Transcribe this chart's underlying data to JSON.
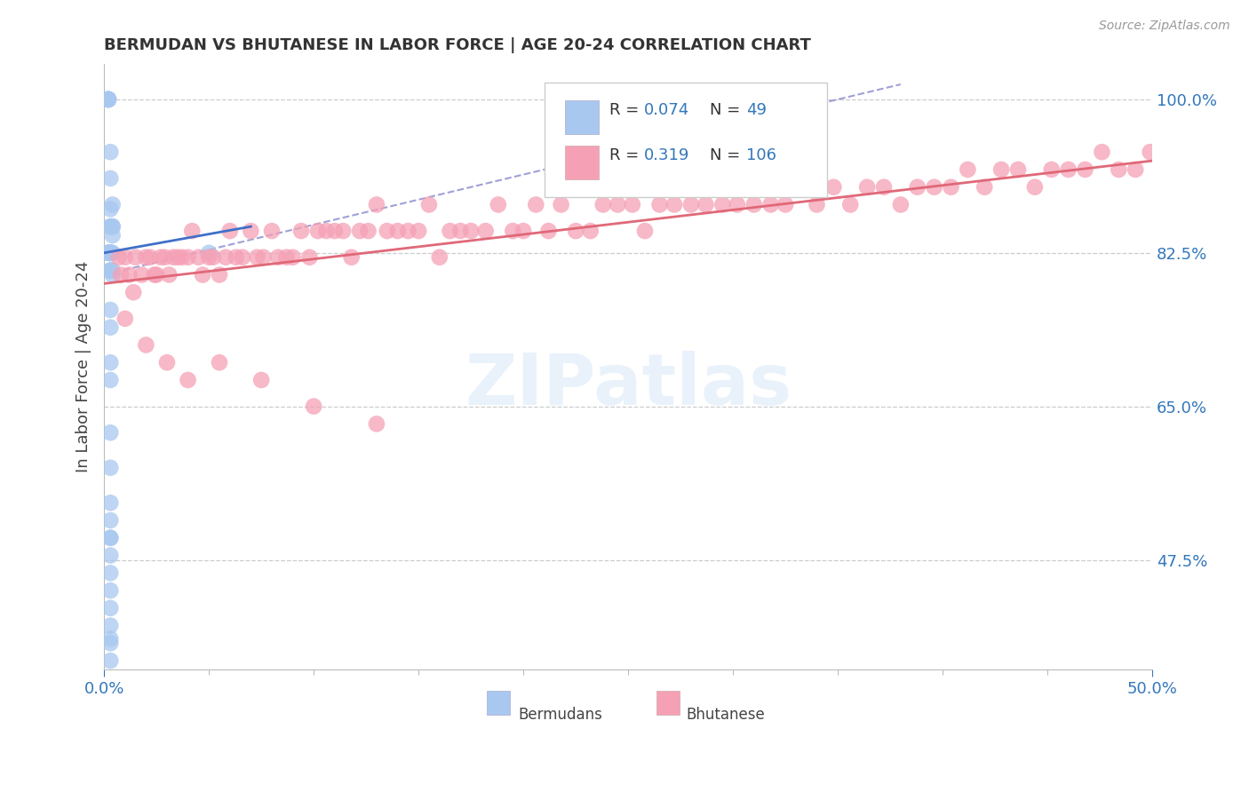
{
  "title": "BERMUDAN VS BHUTANESE IN LABOR FORCE | AGE 20-24 CORRELATION CHART",
  "source": "Source: ZipAtlas.com",
  "ylabel": "In Labor Force | Age 20-24",
  "watermark": "ZIPatlas",
  "legend_r1": "R = 0.074",
  "legend_n1": "N =  49",
  "legend_r2": "R = 0.319",
  "legend_n2": "N = 106",
  "bermudan_color": "#a8c8f0",
  "bhutanese_color": "#f5a0b5",
  "bermudan_line_color": "#4070c8",
  "bhutanese_line_color": "#e06878",
  "dashed_line_color": "#9090d0",
  "xlim": [
    0.0,
    0.5
  ],
  "ylim": [
    0.35,
    1.04
  ],
  "yticks": [
    0.475,
    0.65,
    0.825,
    1.0
  ],
  "ytick_labels": [
    "47.5%",
    "65.0%",
    "82.5%",
    "100.0%"
  ],
  "xtick_vals": [
    0.0,
    0.5
  ],
  "xtick_labels": [
    "0.0%",
    "50.0%"
  ],
  "berm_x": [
    0.002,
    0.002,
    0.002,
    0.002,
    0.002,
    0.003,
    0.003,
    0.004,
    0.003,
    0.004,
    0.003,
    0.003,
    0.004,
    0.004,
    0.002,
    0.002,
    0.002,
    0.003,
    0.003,
    0.003,
    0.003,
    0.003,
    0.003,
    0.003,
    0.004,
    0.003,
    0.003,
    0.004,
    0.004,
    0.003,
    0.003,
    0.003,
    0.003,
    0.003,
    0.003,
    0.003,
    0.003,
    0.003,
    0.003,
    0.003,
    0.003,
    0.003,
    0.003,
    0.003,
    0.003,
    0.003,
    0.003,
    0.05,
    0.003
  ],
  "berm_y": [
    1.0,
    1.0,
    1.0,
    1.0,
    1.0,
    0.94,
    0.91,
    0.88,
    0.875,
    0.855,
    0.855,
    0.855,
    0.855,
    0.845,
    0.825,
    0.825,
    0.825,
    0.825,
    0.825,
    0.825,
    0.825,
    0.825,
    0.825,
    0.825,
    0.825,
    0.805,
    0.805,
    0.805,
    0.8,
    0.76,
    0.74,
    0.7,
    0.68,
    0.62,
    0.58,
    0.54,
    0.5,
    0.825,
    0.52,
    0.5,
    0.48,
    0.46,
    0.44,
    0.42,
    0.4,
    0.38,
    0.36,
    0.825,
    0.385
  ],
  "bhu_x": [
    0.007,
    0.008,
    0.01,
    0.012,
    0.014,
    0.015,
    0.018,
    0.02,
    0.022,
    0.024,
    0.025,
    0.027,
    0.029,
    0.031,
    0.033,
    0.035,
    0.037,
    0.04,
    0.042,
    0.045,
    0.047,
    0.05,
    0.052,
    0.055,
    0.058,
    0.06,
    0.063,
    0.066,
    0.07,
    0.073,
    0.076,
    0.08,
    0.083,
    0.087,
    0.09,
    0.094,
    0.098,
    0.102,
    0.106,
    0.11,
    0.114,
    0.118,
    0.122,
    0.126,
    0.13,
    0.135,
    0.14,
    0.145,
    0.15,
    0.155,
    0.16,
    0.165,
    0.17,
    0.175,
    0.182,
    0.188,
    0.195,
    0.2,
    0.206,
    0.212,
    0.218,
    0.225,
    0.232,
    0.238,
    0.245,
    0.252,
    0.258,
    0.265,
    0.272,
    0.28,
    0.287,
    0.295,
    0.302,
    0.31,
    0.318,
    0.325,
    0.333,
    0.34,
    0.348,
    0.356,
    0.364,
    0.372,
    0.38,
    0.388,
    0.396,
    0.404,
    0.412,
    0.42,
    0.428,
    0.436,
    0.444,
    0.452,
    0.46,
    0.468,
    0.476,
    0.484,
    0.492,
    0.499,
    0.01,
    0.02,
    0.03,
    0.04,
    0.055,
    0.075,
    0.1,
    0.13
  ],
  "bhu_y": [
    0.82,
    0.8,
    0.82,
    0.8,
    0.78,
    0.82,
    0.8,
    0.82,
    0.82,
    0.8,
    0.8,
    0.82,
    0.82,
    0.8,
    0.82,
    0.82,
    0.82,
    0.82,
    0.85,
    0.82,
    0.8,
    0.82,
    0.82,
    0.8,
    0.82,
    0.85,
    0.82,
    0.82,
    0.85,
    0.82,
    0.82,
    0.85,
    0.82,
    0.82,
    0.82,
    0.85,
    0.82,
    0.85,
    0.85,
    0.85,
    0.85,
    0.82,
    0.85,
    0.85,
    0.88,
    0.85,
    0.85,
    0.85,
    0.85,
    0.88,
    0.82,
    0.85,
    0.85,
    0.85,
    0.85,
    0.88,
    0.85,
    0.85,
    0.88,
    0.85,
    0.88,
    0.85,
    0.85,
    0.88,
    0.88,
    0.88,
    0.85,
    0.88,
    0.88,
    0.88,
    0.88,
    0.88,
    0.88,
    0.88,
    0.88,
    0.88,
    0.9,
    0.88,
    0.9,
    0.88,
    0.9,
    0.9,
    0.88,
    0.9,
    0.9,
    0.9,
    0.92,
    0.9,
    0.92,
    0.92,
    0.9,
    0.92,
    0.92,
    0.92,
    0.94,
    0.92,
    0.92,
    0.94,
    0.75,
    0.72,
    0.7,
    0.68,
    0.7,
    0.68,
    0.65,
    0.63
  ]
}
